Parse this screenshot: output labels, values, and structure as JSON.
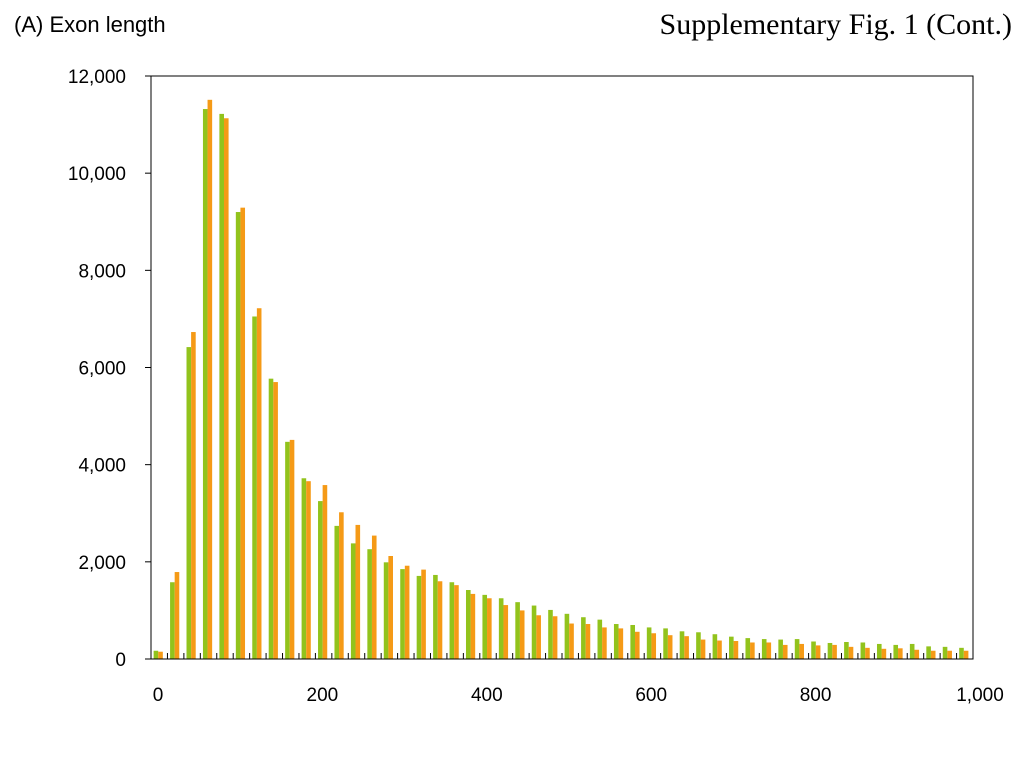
{
  "panel_label": "(A) Exon length",
  "figure_title": "Supplementary Fig. 1 (Cont.)",
  "colors": {
    "series_1": "#92c31c",
    "series_2": "#f59a16"
  },
  "chart_data": {
    "type": "bar",
    "title": "",
    "xlabel": "",
    "ylabel": "",
    "xlim": [
      0,
      1000
    ],
    "ylim": [
      0,
      12000
    ],
    "bin_width": 20,
    "x_ticks": [
      0,
      200,
      400,
      600,
      800,
      1000
    ],
    "x_tick_labels": [
      "0",
      "200",
      "400",
      "600",
      "800",
      "1,000"
    ],
    "y_ticks": [
      0,
      2000,
      4000,
      6000,
      8000,
      10000,
      12000
    ],
    "y_tick_labels": [
      "0",
      "2,000",
      "4,000",
      "6,000",
      "8,000",
      "10,000",
      "12,000"
    ],
    "grid": false,
    "legend": "none",
    "categories": [
      0,
      20,
      40,
      60,
      80,
      100,
      120,
      140,
      160,
      180,
      200,
      220,
      240,
      260,
      280,
      300,
      320,
      340,
      360,
      380,
      400,
      420,
      440,
      460,
      480,
      500,
      520,
      540,
      560,
      580,
      600,
      620,
      640,
      660,
      680,
      700,
      720,
      740,
      760,
      780,
      800,
      820,
      840,
      860,
      880,
      900,
      920,
      940,
      960,
      980
    ],
    "series": [
      {
        "values": [
          170,
          1580,
          6420,
          11320,
          11220,
          9200,
          7050,
          5770,
          4470,
          3720,
          3250,
          2740,
          2380,
          2260,
          1990,
          1850,
          1710,
          1730,
          1580,
          1420,
          1320,
          1250,
          1170,
          1100,
          1010,
          930,
          860,
          810,
          720,
          700,
          650,
          630,
          570,
          550,
          510,
          460,
          430,
          410,
          400,
          410,
          360,
          330,
          350,
          340,
          310,
          290,
          310,
          260,
          250,
          230
        ]
      },
      {
        "values": [
          150,
          1790,
          6730,
          11510,
          11130,
          9290,
          7220,
          5700,
          4510,
          3660,
          3580,
          3020,
          2760,
          2540,
          2120,
          1920,
          1840,
          1600,
          1520,
          1340,
          1250,
          1110,
          1000,
          900,
          880,
          730,
          720,
          650,
          630,
          560,
          530,
          490,
          470,
          400,
          380,
          370,
          340,
          340,
          290,
          310,
          280,
          290,
          250,
          230,
          210,
          220,
          190,
          170,
          170,
          170
        ]
      }
    ]
  }
}
